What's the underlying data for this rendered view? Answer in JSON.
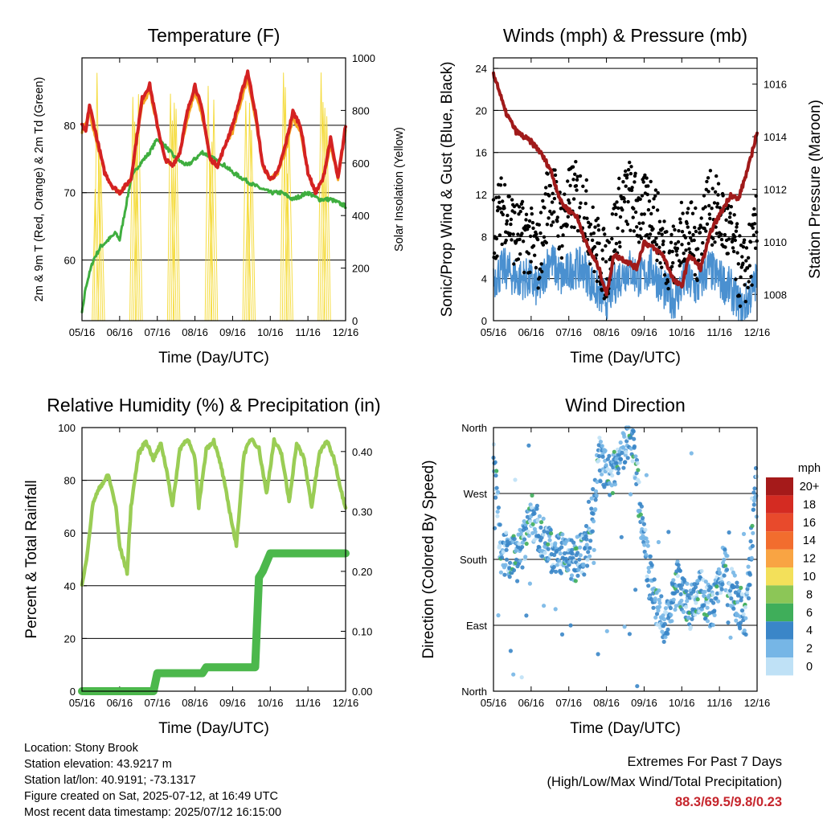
{
  "colors": {
    "temp_2m": "#d42222",
    "temp_9m": "#f5a623",
    "dewpoint": "#3fae3f",
    "insolation": "#f5dc40",
    "wind_sonic": "#4a90d0",
    "wind_gust": "#000000",
    "pressure": "#a01a1a",
    "rh": "#9acd55",
    "precip": "#4cb84c",
    "extremes": "#c6262d"
  },
  "x_ticks": [
    "05/16",
    "06/16",
    "07/16",
    "08/16",
    "09/16",
    "10/16",
    "11/16",
    "12/16"
  ],
  "info": {
    "location": "Location: Stony Brook",
    "elevation": "Station elevation: 43.9217 m",
    "latlon": "Station lat/lon: 40.9191; -73.1317",
    "created": "Figure created on Sat, 2025-07-12, at 16:49 UTC",
    "recent": "Most recent data timestamp: 2025/07/12 16:15:00",
    "extremes_title": "Extremes For Past 7 Days",
    "extremes_subtitle": "(High/Low/Max Wind/Total Precipitation)",
    "extremes_values": "88.3/69.5/9.8/0.23"
  },
  "chart_data": [
    {
      "type": "line",
      "title": "Temperature (F)",
      "xlabel": "Time (Day/UTC)",
      "ylabel": "2m & 9m T (Red, Orange) & 2m Td (Green)",
      "ylabel_right": "Solar Insolation (Yellow)",
      "ylim": [
        51,
        90
      ],
      "ylim_right": [
        0,
        1000
      ],
      "yticks": [
        60,
        70,
        80
      ],
      "yticks_right": [
        0,
        200,
        400,
        600,
        800,
        1000
      ],
      "x_ticks": [
        "05/16",
        "06/16",
        "07/16",
        "08/16",
        "09/16",
        "10/16",
        "11/16",
        "12/16"
      ],
      "grid": "horizontal",
      "series": [
        {
          "key": "t2m",
          "x": [
            0,
            0.1,
            0.2,
            0.4,
            0.6,
            0.8,
            1.0,
            1.3,
            1.6,
            1.8,
            2.0,
            2.2,
            2.4,
            2.6,
            2.8,
            3.0,
            3.2,
            3.4,
            3.6,
            3.8,
            4.0,
            4.2,
            4.4,
            4.6,
            4.8,
            5.0,
            5.2,
            5.4,
            5.6,
            5.8,
            6.0,
            6.2,
            6.4,
            6.6,
            6.8,
            7.0
          ],
          "values": [
            80,
            79,
            83,
            78,
            73,
            71,
            70,
            72,
            84,
            86,
            80,
            75,
            74,
            76,
            82,
            86,
            82,
            75,
            74,
            77,
            80,
            84,
            88,
            82,
            74,
            72,
            73,
            77,
            82,
            80,
            73,
            70,
            72,
            78,
            72,
            80
          ]
        },
        {
          "key": "t9m",
          "x": [
            0,
            0.2,
            0.4,
            0.6,
            0.8,
            1.0,
            1.3,
            1.6,
            1.8,
            2.0,
            2.2,
            2.4,
            2.6,
            2.8,
            3.0,
            3.2,
            3.4,
            3.6,
            3.8,
            4.0,
            4.2,
            4.4,
            4.6,
            4.8,
            5.0,
            5.2,
            5.4,
            5.6,
            5.8,
            6.0,
            6.2,
            6.4,
            6.6,
            6.8,
            7.0
          ],
          "values": [
            79,
            82,
            77,
            73,
            71,
            70,
            72,
            83,
            85,
            80,
            75,
            74,
            76,
            81,
            85,
            81,
            75,
            74,
            77,
            79,
            83,
            87,
            81,
            74,
            72,
            73,
            76,
            81,
            79,
            73,
            70,
            72,
            77,
            72,
            79
          ]
        },
        {
          "key": "td",
          "x": [
            0,
            0.1,
            0.3,
            0.5,
            0.7,
            0.9,
            1.0,
            1.1,
            1.3,
            1.5,
            1.8,
            2.0,
            2.2,
            2.5,
            2.8,
            3.0,
            3.2,
            3.5,
            3.8,
            4.0,
            4.3,
            4.6,
            5.0,
            5.3,
            5.6,
            6.0,
            6.3,
            6.6,
            7.0
          ],
          "values": [
            52,
            56,
            60,
            62,
            63,
            64,
            63,
            66,
            72,
            74,
            76,
            78,
            77,
            75,
            74,
            75,
            76,
            75,
            74,
            73,
            72,
            71,
            70,
            70,
            69,
            70,
            69,
            69,
            68
          ]
        }
      ]
    },
    {
      "type": "line",
      "title": "Winds (mph) & Pressure (mb)",
      "xlabel": "Time (Day/UTC)",
      "ylabel": "Sonic/Prop Wind & Gust (Blue, Black)",
      "ylabel_right": "Station Pressure (Maroon)",
      "ylim": [
        0,
        25
      ],
      "ylim_right": [
        1007,
        1017
      ],
      "yticks": [
        0,
        4,
        8,
        12,
        16,
        20,
        24
      ],
      "yticks_right": [
        1008,
        1010,
        1012,
        1014,
        1016
      ],
      "x_ticks": [
        "05/16",
        "06/16",
        "07/16",
        "08/16",
        "09/16",
        "10/16",
        "11/16",
        "12/16"
      ],
      "grid": "horizontal",
      "series": [
        {
          "key": "pressure",
          "x": [
            0,
            0.1,
            0.3,
            0.6,
            0.8,
            1.0,
            1.2,
            1.5,
            1.8,
            2.0,
            2.2,
            2.5,
            2.8,
            3.0,
            3.2,
            3.5,
            3.8,
            4.0,
            4.2,
            4.5,
            4.8,
            5.0,
            5.2,
            5.5,
            5.8,
            6.0,
            6.3,
            6.5,
            6.8,
            7.0
          ],
          "values": [
            1016.4,
            1016.0,
            1015.0,
            1014.2,
            1014.0,
            1013.8,
            1013.5,
            1012.8,
            1011.5,
            1011.2,
            1011.0,
            1009.8,
            1009.0,
            1008.0,
            1009.5,
            1009.3,
            1009.0,
            1010.0,
            1009.8,
            1009.5,
            1008.5,
            1008.3,
            1009.5,
            1009.0,
            1010.5,
            1011.0,
            1011.8,
            1011.6,
            1013.0,
            1014.2
          ]
        },
        {
          "key": "sonic",
          "x": [
            0,
            0.3,
            0.6,
            0.9,
            1.2,
            1.5,
            1.8,
            2.1,
            2.4,
            2.7,
            3.0,
            3.3,
            3.6,
            3.9,
            4.2,
            4.5,
            4.8,
            5.1,
            5.4,
            5.7,
            6.0,
            6.3,
            6.6,
            6.9,
            7.0
          ],
          "values": [
            4,
            5,
            4,
            4,
            3,
            6,
            4,
            5,
            5,
            3,
            2,
            4,
            5,
            4,
            5,
            3,
            2,
            4,
            3,
            5,
            4,
            3,
            1,
            3,
            4
          ]
        },
        {
          "key": "gust",
          "x": [
            0,
            0.3,
            0.6,
            0.9,
            1.2,
            1.5,
            1.8,
            2.1,
            2.4,
            2.7,
            3.0,
            3.3,
            3.6,
            3.9,
            4.2,
            4.5,
            4.8,
            5.1,
            5.4,
            5.7,
            6.0,
            6.3,
            6.6,
            6.9,
            7.0
          ],
          "values": [
            9,
            11,
            8,
            8,
            6,
            13,
            9,
            12,
            11,
            7,
            5,
            10,
            12,
            10,
            11,
            7,
            6,
            9,
            7,
            11,
            10,
            8,
            4,
            7,
            9
          ]
        }
      ]
    },
    {
      "type": "line",
      "title": "Relative Humidity (%) & Precipitation (in)",
      "xlabel": "Time (Day/UTC)",
      "ylabel": "Percent & Total Rainfall",
      "ylim": [
        0,
        100
      ],
      "ylim_right": [
        0,
        0.44
      ],
      "yticks": [
        0,
        20,
        40,
        60,
        80,
        100
      ],
      "yticks_right": [
        0.0,
        0.1,
        0.2,
        0.3,
        0.4
      ],
      "x_ticks": [
        "05/16",
        "06/16",
        "07/16",
        "08/16",
        "09/16",
        "10/16",
        "11/16",
        "12/16"
      ],
      "grid": "horizontal",
      "series": [
        {
          "key": "rh",
          "x": [
            0,
            0.1,
            0.3,
            0.5,
            0.7,
            0.9,
            1.0,
            1.2,
            1.3,
            1.5,
            1.7,
            1.9,
            2.1,
            2.3,
            2.4,
            2.6,
            2.8,
            3.0,
            3.1,
            3.3,
            3.5,
            3.7,
            3.9,
            4.1,
            4.3,
            4.5,
            4.7,
            4.9,
            5.1,
            5.3,
            5.5,
            5.7,
            5.9,
            6.1,
            6.3,
            6.5,
            6.7,
            6.9,
            7.0
          ],
          "values": [
            40,
            48,
            72,
            78,
            82,
            70,
            55,
            45,
            70,
            90,
            95,
            88,
            94,
            80,
            70,
            92,
            96,
            88,
            70,
            92,
            95,
            85,
            70,
            55,
            90,
            96,
            92,
            75,
            95,
            90,
            72,
            94,
            88,
            70,
            90,
            95,
            88,
            75,
            70
          ]
        },
        {
          "key": "precip",
          "x": [
            0,
            1.9,
            2.0,
            3.2,
            3.3,
            4.6,
            4.7,
            4.8,
            5.0,
            7.0
          ],
          "values": [
            0.0,
            0.0,
            0.03,
            0.03,
            0.04,
            0.04,
            0.19,
            0.2,
            0.23,
            0.23
          ]
        }
      ]
    },
    {
      "type": "scatter",
      "title": "Wind Direction",
      "xlabel": "Time (Day/UTC)",
      "ylabel": "Direction (Colored By Speed)",
      "yticks": [
        "North",
        "East",
        "South",
        "West",
        "North"
      ],
      "x_ticks": [
        "05/16",
        "06/16",
        "07/16",
        "08/16",
        "09/16",
        "10/16",
        "11/16",
        "12/16"
      ],
      "grid": "horizontal",
      "legend": {
        "title": "mph",
        "labels": [
          "20+",
          "18",
          "16",
          "14",
          "12",
          "10",
          "8",
          "6",
          "4",
          "2",
          "0"
        ],
        "colors": [
          "#a51a1a",
          "#d42b22",
          "#e84a2c",
          "#f26d2e",
          "#f9a443",
          "#f3e05a",
          "#8cc657",
          "#3fae5a",
          "#3a86c8",
          "#76b6e6",
          "#bfe1f6"
        ]
      },
      "series": [
        {
          "key": "dir",
          "x": [
            0,
            0.2,
            0.5,
            0.8,
            1.0,
            1.3,
            1.6,
            1.9,
            2.2,
            2.5,
            2.8,
            3.1,
            3.4,
            3.7,
            4.0,
            4.3,
            4.6,
            4.9,
            5.2,
            5.5,
            5.8,
            6.1,
            6.4,
            6.7,
            7.0
          ],
          "values": [
            330,
            190,
            185,
            200,
            240,
            210,
            185,
            185,
            180,
            190,
            320,
            290,
            330,
            340,
            200,
            120,
            90,
            150,
            110,
            140,
            110,
            170,
            130,
            100,
            300
          ]
        }
      ]
    }
  ]
}
